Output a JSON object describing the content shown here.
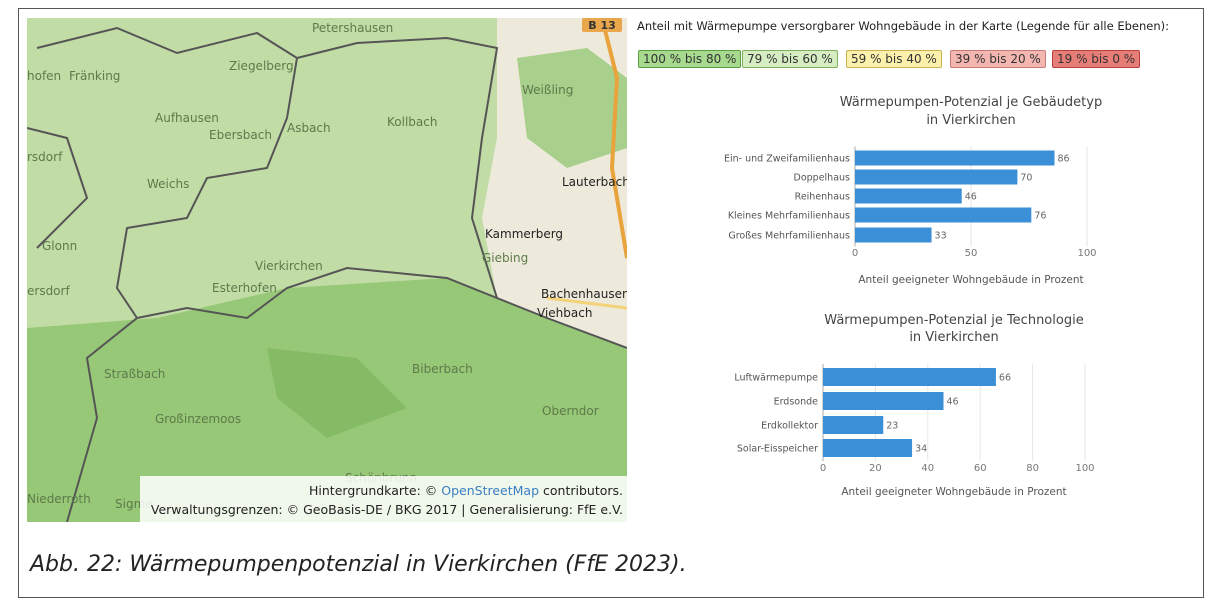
{
  "legend_heading": "Anteil mit Wärmepumpe versorgbarer Wohngebäude in der Karte (Legende für alle Ebenen):",
  "legend": [
    {
      "label": "100 % bis 80 %",
      "color": "#a7d98f"
    },
    {
      "label": "79 % bis 60 %",
      "color": "#d6ecc2"
    },
    {
      "label": "59 % bis 40 %",
      "color": "#fbf0ac"
    },
    {
      "label": "39 % bis 20 %",
      "color": "#f3b6b0"
    },
    {
      "label": "19 % bis 0 %",
      "color": "#e67d77"
    }
  ],
  "map": {
    "road": "B 13",
    "labels": [
      "Petershausen",
      "hofen",
      "Fränking",
      "Ziegelberg",
      "Weißling",
      "Aufhausen",
      "Ebersbach",
      "Asbach",
      "Kollbach",
      "rsdorf",
      "Weichs",
      "Lauterbach",
      "Kammerberg",
      "Glonn",
      "Giebing",
      "Vierkirchen",
      "Esterhofen",
      "ersdorf",
      "Bachenhausen",
      "Viehbach",
      "Straßbach",
      "Biberbach",
      "Oberndor",
      "Großinzemoos",
      "Schönbrunn",
      "Niederroth",
      "Sigme"
    ],
    "attribution": {
      "prefix": "Hintergrundkarte: ©",
      "link": "OpenStreetMap",
      "suffix": "contributors.",
      "line2": "Verwaltungsgrenzen: © GeoBasis-DE / BKG 2017 | Generalisierung: FfE e.V."
    }
  },
  "chart_data": [
    {
      "type": "bar",
      "title": [
        "Wärmepumpen-Potenzial je Gebäudetyp",
        "in Vierkirchen"
      ],
      "categories": [
        "Ein- und Zweifamilienhaus",
        "Doppelhaus",
        "Reihenhaus",
        "Kleines Mehrfamilienhaus",
        "Großes Mehrfamilienhaus"
      ],
      "values": [
        86,
        70,
        46,
        76,
        33
      ],
      "color": "#3a8fd6",
      "xlim": [
        0,
        100
      ],
      "xticks": [
        0,
        50,
        100
      ],
      "xlabel": "Anteil geeigneter Wohngebäude in Prozent"
    },
    {
      "type": "bar",
      "title": [
        "Wärmepumpen-Potenzial je Technologie",
        "in Vierkirchen"
      ],
      "categories": [
        "Luftwärmepumpe",
        "Erdsonde",
        "Erdkollektor",
        "Solar-Eisspeicher"
      ],
      "values": [
        66,
        46,
        23,
        34
      ],
      "color": "#3a8fd6",
      "xlim": [
        0,
        100
      ],
      "xticks": [
        0,
        20,
        40,
        60,
        80,
        100
      ],
      "xlabel": "Anteil geeigneter Wohngebäude in Prozent"
    }
  ],
  "caption": "Abb. 22: Wärmepumpenpotenzial in Vierkirchen (FfE 2023)."
}
